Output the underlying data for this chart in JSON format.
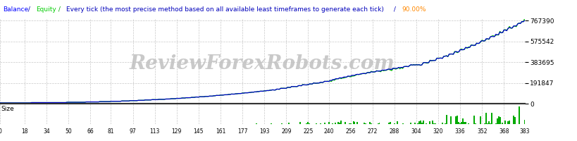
{
  "watermark": "ReviewForexRobots.com",
  "bg_color": "#ffffff",
  "grid_color": "#c8c8c8",
  "x_ticks": [
    0,
    18,
    34,
    50,
    66,
    81,
    97,
    113,
    129,
    145,
    161,
    177,
    193,
    209,
    225,
    240,
    256,
    272,
    288,
    304,
    320,
    336,
    352,
    368,
    383
  ],
  "y_ticks": [
    0,
    191847,
    383695,
    575542,
    767390
  ],
  "y_max": 767390,
  "y_min": 0,
  "x_max": 383,
  "x_min": 0,
  "balance_color": "#0000cc",
  "equity_color": "#00bb00",
  "size_bar_color": "#00aa00",
  "size_label": "Size",
  "title_balance": "Balance",
  "title_slash1": " / ",
  "title_equity": "Equity",
  "title_slash2": " / ",
  "title_every": "Every tick (the most precise method based on all available least timeframes to generate each tick)",
  "title_slash3": " / ",
  "title_pct": "90.00%",
  "color_balance": "#0000ff",
  "color_equity": "#00cc00",
  "color_every": "#0000ff",
  "color_pct": "#ff8800"
}
